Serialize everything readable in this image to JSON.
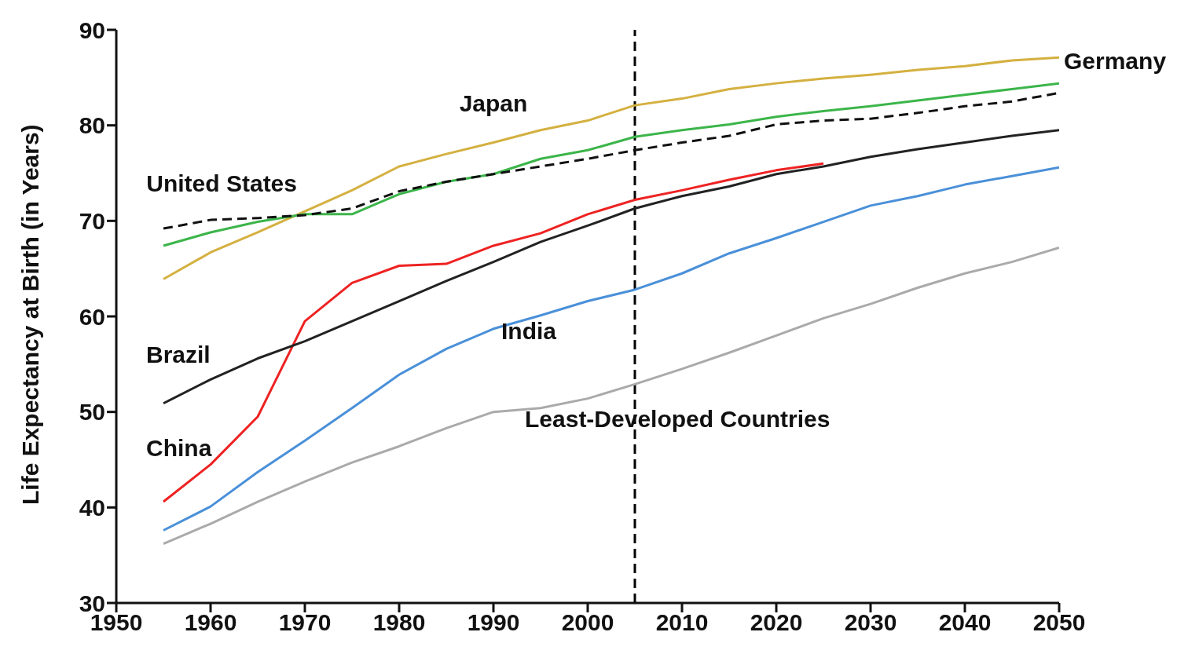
{
  "chart_data": {
    "type": "line",
    "ylabel": "Life Expectancy at Birth (in Years)",
    "x": [
      1955,
      1960,
      1965,
      1970,
      1975,
      1980,
      1985,
      1990,
      1995,
      2000,
      2005,
      2010,
      2015,
      2020,
      2025,
      2030,
      2035,
      2040,
      2045,
      2050
    ],
    "xlim": [
      1950,
      2050
    ],
    "xticks": [
      1950,
      1960,
      1970,
      1980,
      1990,
      2000,
      2010,
      2020,
      2030,
      2040,
      2050
    ],
    "ylim": [
      30,
      90
    ],
    "yticks": [
      30,
      40,
      50,
      60,
      70,
      80,
      90
    ],
    "grid": false,
    "legend": false,
    "marker": "none",
    "series": [
      {
        "name": "Japan",
        "color": "#d4b040",
        "values": [
          63.9,
          66.7,
          68.8,
          71,
          73.2,
          75.7,
          77,
          78.2,
          79.5,
          80.5,
          82.1,
          82.8,
          83.8,
          84.4,
          84.9,
          85.3,
          85.8,
          86.2,
          86.8,
          87.1
        ]
      },
      {
        "name": "Germany",
        "color": "#3cb54a",
        "values": [
          67.4,
          68.8,
          69.9,
          70.7,
          70.7,
          72.8,
          74.1,
          74.9,
          76.5,
          77.4,
          78.8,
          79.5,
          80.1,
          80.9,
          81.5,
          82,
          82.6,
          83.2,
          83.8,
          84.4
        ]
      },
      {
        "name": "United States",
        "color": "#111111",
        "line_style": "dashed",
        "values": [
          69.2,
          70.1,
          70.3,
          70.6,
          71.3,
          73.1,
          74.1,
          74.9,
          75.7,
          76.5,
          77.4,
          78.2,
          78.9,
          80.1,
          80.5,
          80.7,
          81.3,
          82,
          82.5,
          83.4
        ]
      },
      {
        "name": "China",
        "color": "#ee2222",
        "values": [
          40.6,
          44.5,
          49.5,
          59.5,
          63.5,
          65.3,
          65.5,
          67.4,
          68.7,
          70.7,
          72.2,
          73.2,
          74.3,
          75.3,
          76,
          null,
          null,
          null,
          null,
          null
        ]
      },
      {
        "name": "Brazil",
        "color": "#222222",
        "values": [
          50.9,
          53.4,
          55.6,
          57.4,
          59.5,
          61.6,
          63.7,
          65.7,
          67.8,
          69.5,
          71.3,
          72.6,
          73.6,
          74.9,
          75.7,
          76.7,
          77.5,
          78.2,
          78.9,
          79.5
        ]
      },
      {
        "name": "India",
        "color": "#4a90d9",
        "values": [
          37.6,
          40.1,
          43.7,
          47,
          50.4,
          53.9,
          56.6,
          58.7,
          60.1,
          61.6,
          62.8,
          64.5,
          66.6,
          68.2,
          69.9,
          71.6,
          72.6,
          73.8,
          74.7,
          75.6
        ]
      },
      {
        "name": "Least-Developed Countries",
        "color": "#aaaaaa",
        "values": [
          36.2,
          38.3,
          40.6,
          42.7,
          44.7,
          46.4,
          48.3,
          50,
          50.4,
          51.4,
          52.9,
          54.5,
          56.2,
          58,
          59.8,
          61.3,
          63,
          64.5,
          65.7,
          67.2
        ]
      }
    ],
    "ref_lines": [
      {
        "axis": "x",
        "value": 2005,
        "color": "#000000",
        "line_style": "dashed"
      }
    ]
  }
}
